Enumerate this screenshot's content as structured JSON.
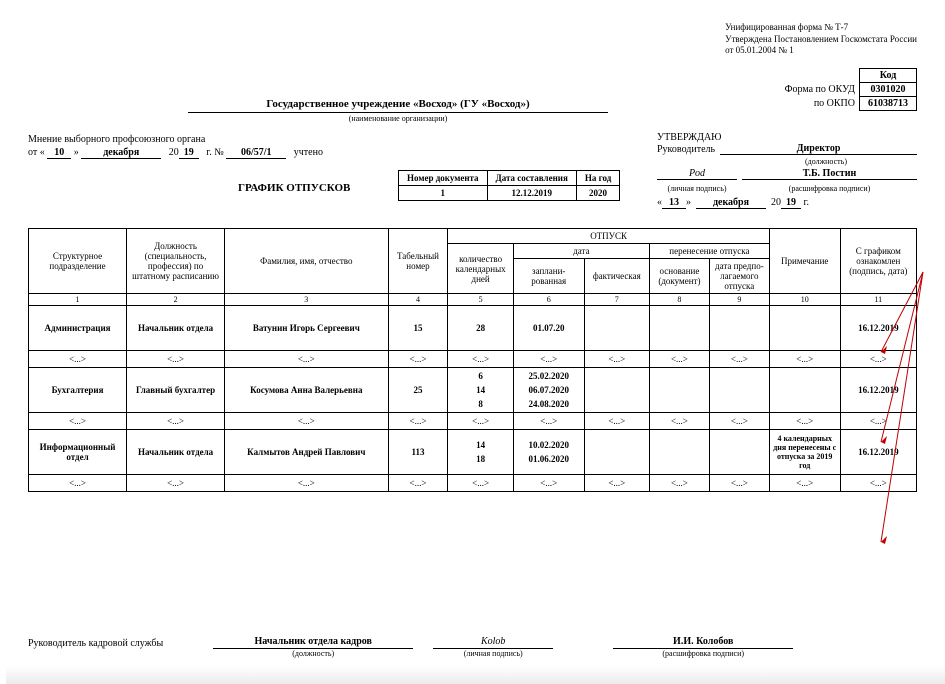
{
  "form_note": {
    "l1": "Унифицированная форма № Т-7",
    "l2": "Утверждена Постановлением Госкомстата России",
    "l3": "от 05.01.2004 № 1"
  },
  "codes": {
    "hdr": "Код",
    "okud_lbl": "Форма по ОКУД",
    "okud": "0301020",
    "okpo_lbl": "по ОКПО",
    "okpo": "61038713"
  },
  "org": {
    "name": "Государственное  учреждение «Восход» (ГУ «Восход»)",
    "sub": "(наименование организации)"
  },
  "union": {
    "prefix": "Мнение выборного профсоюзного органа",
    "from": "от «",
    "day": "10",
    "mid1": "»",
    "month": "декабря",
    "yprefix": "20",
    "yy": "19",
    "gn": "г.   №",
    "no": "06/57/1",
    "suffix": "учтено"
  },
  "title": "ГРАФИК ОТПУСКОВ",
  "docinfo": {
    "h1": "Номер документа",
    "h2": "Дата составления",
    "h3": "На год",
    "v1": "1",
    "v2": "12.12.2019",
    "v3": "2020"
  },
  "approve": {
    "hdr": "УТВЕРЖДАЮ",
    "role_lbl": "Руководитель",
    "role": "Директор",
    "role_sub": "(должность)",
    "sig_sub": "(личная подпись)",
    "name": "Т.Б. Постин",
    "name_sub": "(расшифровка подписи)",
    "day": "13",
    "month": "декабря",
    "yprefix": "20",
    "yy": "19"
  },
  "thead": {
    "c1": "Структурное подразделение",
    "c2": "Должность (специальность, профессия) по штатному расписанию",
    "c3": "Фамилия, имя, отчество",
    "c4": "Табельный номер",
    "vac": "ОТПУСК",
    "c5": "количество календарных дней",
    "date": "дата",
    "c6": "заплани-рованная",
    "c7": "фактическая",
    "transfer": "перенесение отпуска",
    "c8": "основание (документ)",
    "c9": "дата предпо-лагаемого отпуска",
    "c10": "Примечание",
    "c11": "С графиком ознакомлен (подпись, дата)"
  },
  "nums": [
    "1",
    "2",
    "3",
    "4",
    "5",
    "6",
    "7",
    "8",
    "9",
    "10",
    "11"
  ],
  "ell": "<...>",
  "rows": [
    {
      "dept": "Администрация",
      "pos": "Начальник отдела",
      "fio": "Ватунин Игорь Сергеевич",
      "tab": "15",
      "days": [
        "28"
      ],
      "plan": [
        "01.07.20"
      ],
      "fact": "",
      "basis": "",
      "tdate": "",
      "note": "",
      "sign": "16.12.2019"
    },
    {
      "dept": "Бухгалтерия",
      "pos": "Главный бухгалтер",
      "fio": "Косумова Анна Валерьевна",
      "tab": "25",
      "days": [
        "6",
        "14",
        "8"
      ],
      "plan": [
        "25.02.2020",
        "06.07.2020",
        "24.08.2020"
      ],
      "fact": "",
      "basis": "",
      "tdate": "",
      "note": "",
      "sign": "16.12.2019"
    },
    {
      "dept": "Информационный отдел",
      "pos": "Начальник отдела",
      "fio": "Калмытов Андрей Павлович",
      "tab": "113",
      "days": [
        "14",
        "18"
      ],
      "plan": [
        "10.02.2020",
        "01.06.2020"
      ],
      "fact": "",
      "basis": "",
      "tdate": "",
      "note": "4 календарных дня перенесены с отпуска за 2019 год",
      "sign": "16.12.2019"
    }
  ],
  "footer": {
    "lbl": "Руководитель кадровой службы",
    "pos": "Начальник отдела кадров",
    "pos_sub": "(должность)",
    "sig_sub": "(личная подпись)",
    "name": "И.И. Колобов",
    "name_sub": "(расшифровка подписи)"
  },
  "colors": {
    "arrow": "#c00000"
  }
}
